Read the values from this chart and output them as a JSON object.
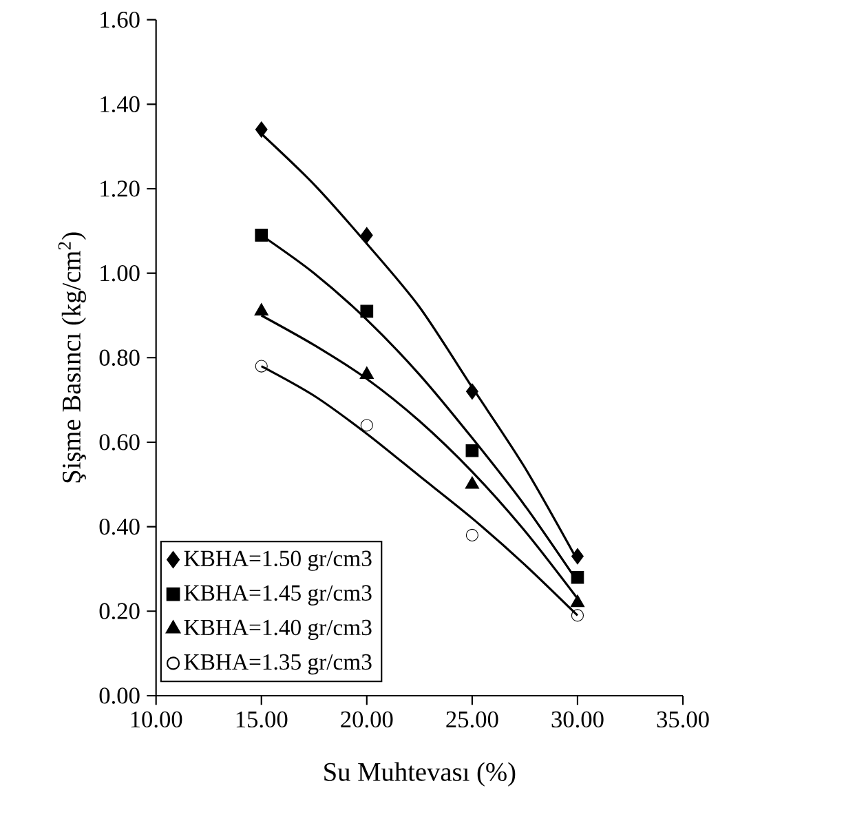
{
  "chart_data": {
    "type": "scatter",
    "xlabel": "Su Muhtevası (%)",
    "ylabel": "Şişme Basıncı (kg/cm$^{2}$)",
    "xlim": [
      10,
      35
    ],
    "ylim": [
      0,
      1.6
    ],
    "xticks": [
      {
        "value": 10,
        "label": "10.00"
      },
      {
        "value": 15,
        "label": "15.00"
      },
      {
        "value": 20,
        "label": "20.00"
      },
      {
        "value": 25,
        "label": "25.00"
      },
      {
        "value": 30,
        "label": "30.00"
      },
      {
        "value": 35,
        "label": "35.00"
      }
    ],
    "yticks": [
      {
        "value": 0,
        "label": "0.00"
      },
      {
        "value": 0.2,
        "label": "0.20"
      },
      {
        "value": 0.4,
        "label": "0.40"
      },
      {
        "value": 0.6,
        "label": "0.60"
      },
      {
        "value": 0.8,
        "label": "0.80"
      },
      {
        "value": 1.0,
        "label": "1.00"
      },
      {
        "value": 1.2,
        "label": "1.20"
      },
      {
        "value": 1.4,
        "label": "1.40"
      },
      {
        "value": 1.6,
        "label": "1.60"
      }
    ],
    "grid": false,
    "legend": "bottom left",
    "x": [
      15,
      20,
      25,
      30
    ],
    "series": [
      {
        "name": "KBHA=1.50 gr/cm3",
        "color": "#000000",
        "marker": "diamond",
        "values": [
          1.34,
          1.09,
          0.72,
          0.33
        ]
      },
      {
        "name": "KBHA=1.45 gr/cm3",
        "color": "#000000",
        "marker": "square",
        "values": [
          1.09,
          0.91,
          0.58,
          0.28
        ]
      },
      {
        "name": "KBHA=1.40 gr/cm3",
        "color": "#000000",
        "marker": "triangle",
        "values": [
          0.91,
          0.76,
          0.5,
          0.22
        ]
      },
      {
        "name": "KBHA=1.35 gr/cm3",
        "color": "#000000",
        "marker": "circle",
        "values": [
          0.78,
          0.64,
          0.38,
          0.19
        ]
      },
      {
        "type": "line",
        "color": "#000000",
        "marker": "none",
        "x": [
          15,
          17.5,
          20,
          22.5,
          25,
          27.5,
          30
        ],
        "values": [
          1.33,
          1.21,
          1.07,
          0.92,
          0.73,
          0.54,
          0.32
        ]
      },
      {
        "type": "line",
        "color": "#000000",
        "marker": "none",
        "x": [
          15,
          17.5,
          20,
          22.5,
          25,
          27.5,
          30
        ],
        "values": [
          1.09,
          1.0,
          0.89,
          0.76,
          0.61,
          0.45,
          0.27
        ]
      },
      {
        "type": "line",
        "color": "#000000",
        "marker": "none",
        "x": [
          15,
          17.5,
          20,
          22.5,
          25,
          27.5,
          30
        ],
        "values": [
          0.9,
          0.83,
          0.75,
          0.65,
          0.53,
          0.39,
          0.23
        ]
      },
      {
        "type": "line",
        "color": "#000000",
        "marker": "none",
        "x": [
          15,
          17.5,
          20,
          22.5,
          25,
          27.5,
          30
        ],
        "values": [
          0.78,
          0.71,
          0.62,
          0.52,
          0.42,
          0.31,
          0.19
        ]
      }
    ]
  }
}
